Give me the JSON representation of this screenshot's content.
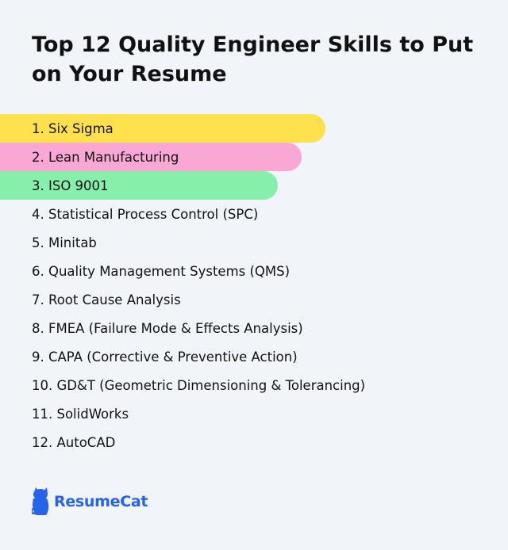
{
  "title": "Top 12 Quality Engineer Skills to Put on Your Resume",
  "skills": [
    "1. Six Sigma",
    "2. Lean Manufacturing",
    "3. ISO 9001",
    "4. Statistical Process Control (SPC)",
    "5. Minitab",
    "6. Quality Management Systems (QMS)",
    "7. Root Cause Analysis",
    "8. FMEA (Failure Mode & Effects Analysis)",
    "9. CAPA (Corrective & Preventive Action)",
    "10. GD&T (Geometric Dimensioning & Tolerancing)",
    "11. SolidWorks",
    "12. AutoCAD"
  ],
  "highlight_colors": [
    "#ffe14d",
    "#f9a8d4",
    "#86efac"
  ],
  "brand": {
    "name": "ResumeCat",
    "color": "#2563eb",
    "icon": "cat-logo-icon"
  }
}
